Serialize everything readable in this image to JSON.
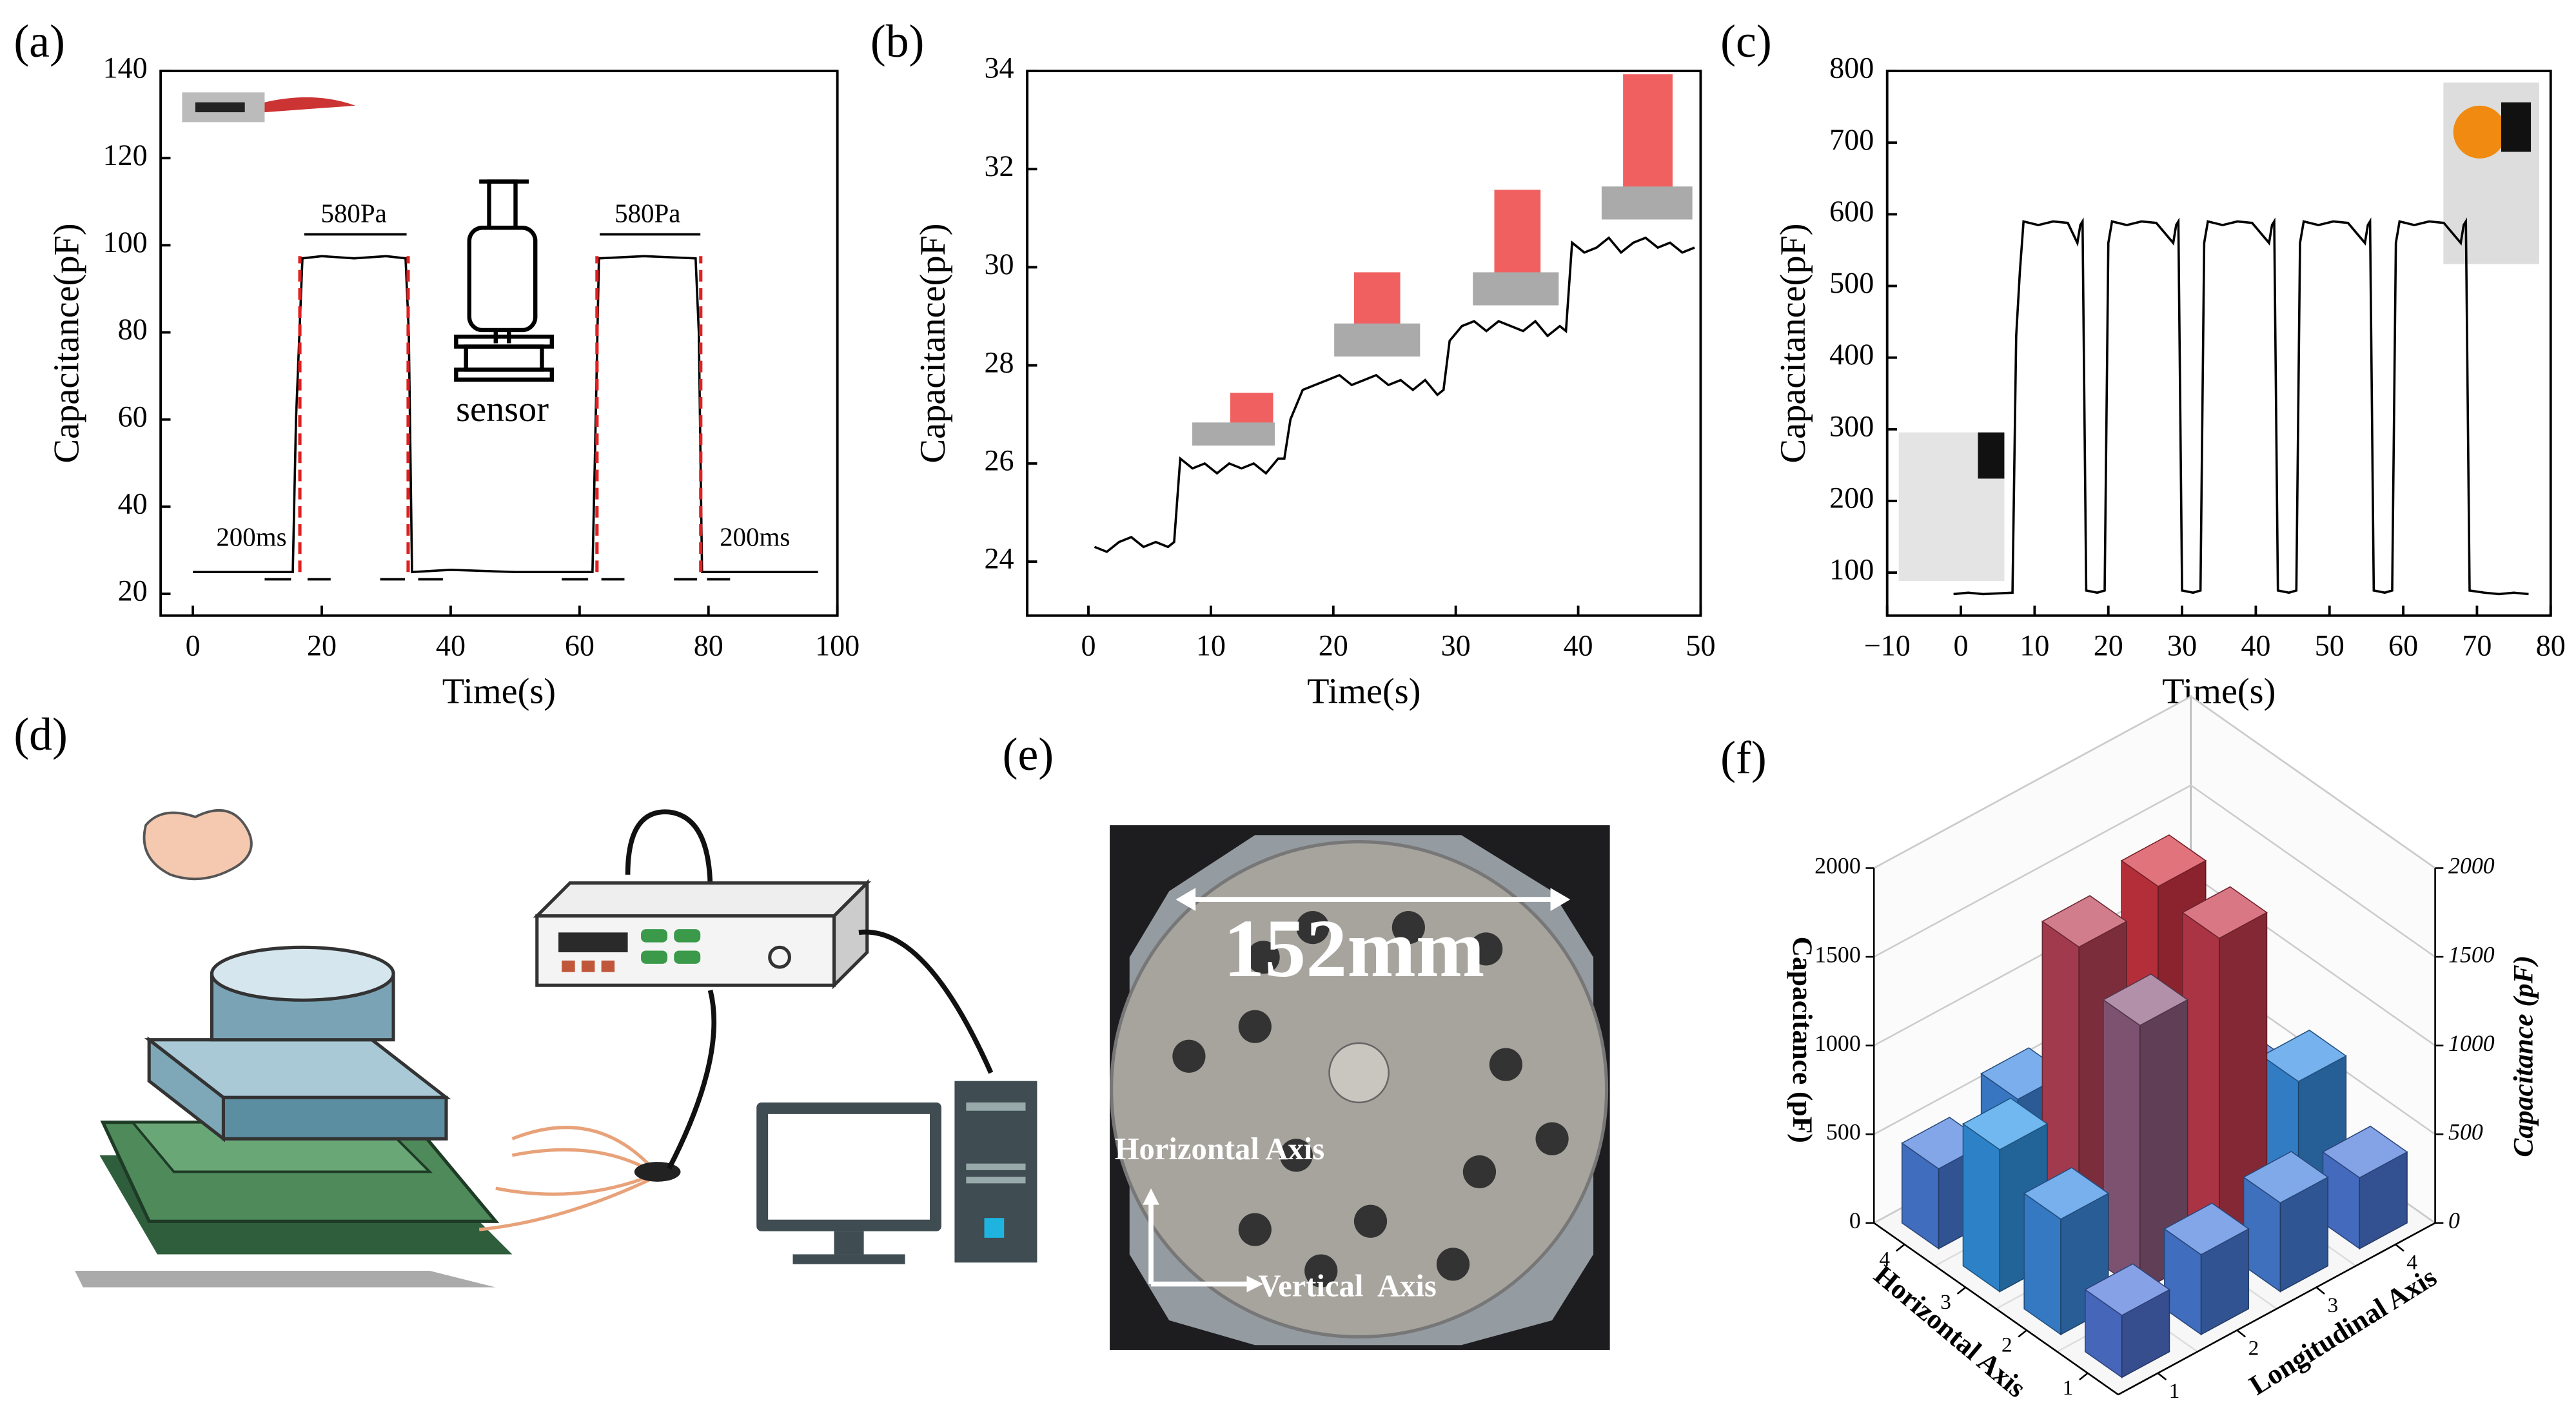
{
  "chart_data": [
    {
      "type": "line",
      "panel": "(a)",
      "x_label": "Time(s)",
      "y_label": "Capacitance(pF)",
      "xlim": [
        -5,
        100
      ],
      "xticks": [
        0,
        20,
        40,
        60,
        80,
        100
      ],
      "ylim": [
        15,
        140
      ],
      "yticks": [
        20,
        40,
        60,
        80,
        100,
        120,
        140
      ],
      "color": "#000000",
      "x": [
        0,
        15.5,
        16,
        17,
        20,
        25,
        30,
        33,
        33.5,
        34,
        40,
        50,
        60,
        62,
        62.5,
        63,
        70,
        78,
        78.5,
        79,
        80,
        90,
        97
      ],
      "values": [
        25,
        25,
        60,
        97,
        97.5,
        97,
        97.5,
        97,
        80,
        25,
        25.5,
        25,
        25,
        25,
        60,
        97,
        97.5,
        97,
        80,
        25,
        25,
        25,
        25
      ],
      "reference_lines": {
        "color": "#e02020",
        "x": [
          16.6,
          33.4,
          62.7,
          78.8
        ]
      },
      "annotations": [
        "580Pa",
        "580Pa",
        "200ms",
        "200ms",
        "sensor"
      ]
    },
    {
      "type": "line",
      "panel": "(b)",
      "x_label": "Time(s)",
      "y_label": "Capacitance(pF)",
      "xlim": [
        -5,
        50
      ],
      "xticks": [
        0,
        10,
        20,
        30,
        40,
        50
      ],
      "ylim": [
        22.9,
        34
      ],
      "yticks": [
        24,
        26,
        28,
        30,
        32,
        34
      ],
      "color": "#000000",
      "x": [
        0.5,
        1.5,
        2.5,
        3.5,
        4.5,
        5.5,
        6.5,
        7,
        7.5,
        8.5,
        9.5,
        10.5,
        11.5,
        12.5,
        13.5,
        14.5,
        15.5,
        16,
        16.5,
        17.5,
        18.5,
        19.5,
        20.5,
        21.5,
        22.5,
        23.5,
        24.5,
        25.5,
        26.5,
        27.5,
        28.5,
        29,
        29.5,
        30.5,
        31.5,
        32.5,
        33.5,
        34.5,
        35.5,
        36.5,
        37.5,
        38.5,
        39,
        39.5,
        40.5,
        41.5,
        42.5,
        43.5,
        44.5,
        45.5,
        46.5,
        47.5,
        48.5,
        49.5
      ],
      "values": [
        24.3,
        24.2,
        24.4,
        24.5,
        24.3,
        24.4,
        24.3,
        24.4,
        26.1,
        25.9,
        26.0,
        25.8,
        26.0,
        25.9,
        26.0,
        25.8,
        26.1,
        26.1,
        26.9,
        27.5,
        27.6,
        27.7,
        27.8,
        27.6,
        27.7,
        27.8,
        27.6,
        27.7,
        27.5,
        27.7,
        27.4,
        27.5,
        28.5,
        28.8,
        28.9,
        28.7,
        28.9,
        28.8,
        28.7,
        28.9,
        28.6,
        28.8,
        28.7,
        30.5,
        30.3,
        30.4,
        30.6,
        30.3,
        30.5,
        30.6,
        30.4,
        30.5,
        30.3,
        30.4
      ]
    },
    {
      "type": "line",
      "panel": "(c)",
      "x_label": "Time(s)",
      "y_label": "Capacitance(pF)",
      "xlim": [
        -10,
        80
      ],
      "xticks": [
        {
          "value": -10,
          "label": "−10"
        },
        0,
        10,
        20,
        30,
        40,
        50,
        60,
        70,
        80
      ],
      "ylim": [
        40,
        800
      ],
      "yticks": [
        100,
        200,
        300,
        400,
        500,
        600,
        700,
        800
      ],
      "color": "#000000",
      "x": [
        -1,
        1,
        3,
        5,
        7,
        7.5,
        8,
        8.5,
        10.5,
        12.5,
        14.5,
        15.8,
        16.2,
        16.5,
        17,
        18.5,
        19.5,
        20,
        20.5,
        22.5,
        24.5,
        26.5,
        28.8,
        29.2,
        29.5,
        30,
        31.5,
        32.5,
        33,
        33.5,
        35.5,
        37.5,
        39.5,
        41.8,
        42.2,
        42.5,
        43,
        44.5,
        45.5,
        46,
        46.5,
        48.5,
        50.5,
        52.5,
        54.8,
        55.2,
        55.5,
        56,
        57.5,
        58.5,
        59,
        59.5,
        61.5,
        63.5,
        65.5,
        67.8,
        68.2,
        68.5,
        69,
        71,
        73,
        75,
        77
      ],
      "values": [
        70,
        72,
        70,
        71,
        72,
        430,
        520,
        590,
        585,
        590,
        588,
        560,
        585,
        590,
        75,
        72,
        75,
        560,
        590,
        585,
        590,
        588,
        560,
        585,
        590,
        75,
        72,
        75,
        560,
        590,
        585,
        590,
        588,
        560,
        585,
        590,
        75,
        72,
        75,
        560,
        590,
        585,
        590,
        588,
        560,
        585,
        590,
        75,
        72,
        75,
        560,
        590,
        585,
        590,
        588,
        560,
        585,
        590,
        75,
        72,
        70,
        72,
        70
      ]
    },
    {
      "type": "bar3d",
      "panel": "(f)",
      "x_label": "Horizontal Axis",
      "y_label": "Longitudinal Axis",
      "z_label": "Capacitance (pF)",
      "xticks": [
        1,
        2,
        3,
        4
      ],
      "yticks": [
        1,
        2,
        3,
        4
      ],
      "zlim": [
        0,
        2000
      ],
      "zticks": [
        0,
        500,
        1000,
        1500,
        2000
      ],
      "values": [
        [
          350,
          450,
          500,
          400
        ],
        [
          650,
          1500,
          1750,
          700
        ],
        [
          800,
          1700,
          1800,
          450
        ],
        [
          450,
          600,
          500,
          400
        ]
      ],
      "colormap": [
        "#6a5fd0",
        "#27a8f0",
        "#ff1a1a"
      ]
    }
  ],
  "diagram": {
    "panel": "(d)"
  },
  "photo": {
    "panel": "(e)",
    "dimension": "152mm",
    "horizontal_label": "Horizontal Axis",
    "vertical_label": "Vertical  Axis"
  }
}
